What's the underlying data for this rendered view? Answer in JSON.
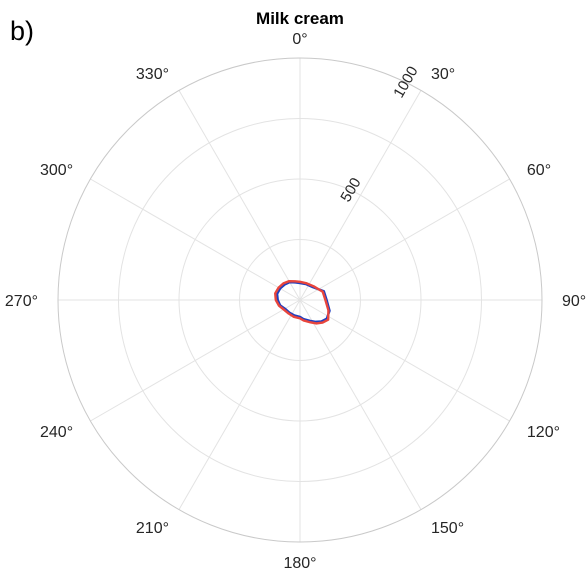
{
  "panel_label": "b)",
  "chart_data": {
    "type": "polar-line",
    "title": "Milk cream",
    "angle_zero": "top",
    "angle_direction": "clockwise",
    "theta_ticks": [
      "0°",
      "30°",
      "60°",
      "90°",
      "120°",
      "150°",
      "180°",
      "210°",
      "240°",
      "270°",
      "300°",
      "330°"
    ],
    "theta_values": [
      0,
      30,
      60,
      90,
      120,
      150,
      180,
      210,
      240,
      270,
      300,
      330
    ],
    "r_ticks": [
      250,
      500,
      750,
      1000
    ],
    "r_tick_labels": [
      "",
      "500",
      "",
      "1000"
    ],
    "r_tick_angle": 30,
    "rlim": [
      0,
      1000
    ],
    "grid": true,
    "series": [
      {
        "color": "#1f3fbf",
        "theta": [
          0,
          20,
          45,
          70,
          90,
          110,
          125,
          135,
          145,
          155,
          170,
          180,
          200,
          220,
          240,
          255,
          270,
          285,
          300,
          315,
          330,
          345,
          360
        ],
        "r": [
          70,
          70,
          75,
          105,
          110,
          130,
          135,
          125,
          110,
          95,
          80,
          70,
          68,
          68,
          72,
          85,
          92,
          98,
          95,
          90,
          85,
          75,
          70
        ]
      },
      {
        "color": "#e8453c",
        "theta": [
          0,
          20,
          45,
          70,
          90,
          110,
          125,
          135,
          145,
          155,
          170,
          180,
          200,
          220,
          240,
          255,
          270,
          285,
          300,
          315,
          330,
          345,
          360
        ],
        "r": [
          75,
          74,
          80,
          100,
          105,
          125,
          142,
          132,
          118,
          102,
          86,
          76,
          74,
          73,
          78,
          90,
          100,
          106,
          102,
          97,
          90,
          80,
          75
        ]
      }
    ]
  },
  "colors": {
    "grid": "#e3e3e3",
    "outer_ring": "#c9c9c9",
    "text": "#262626"
  }
}
